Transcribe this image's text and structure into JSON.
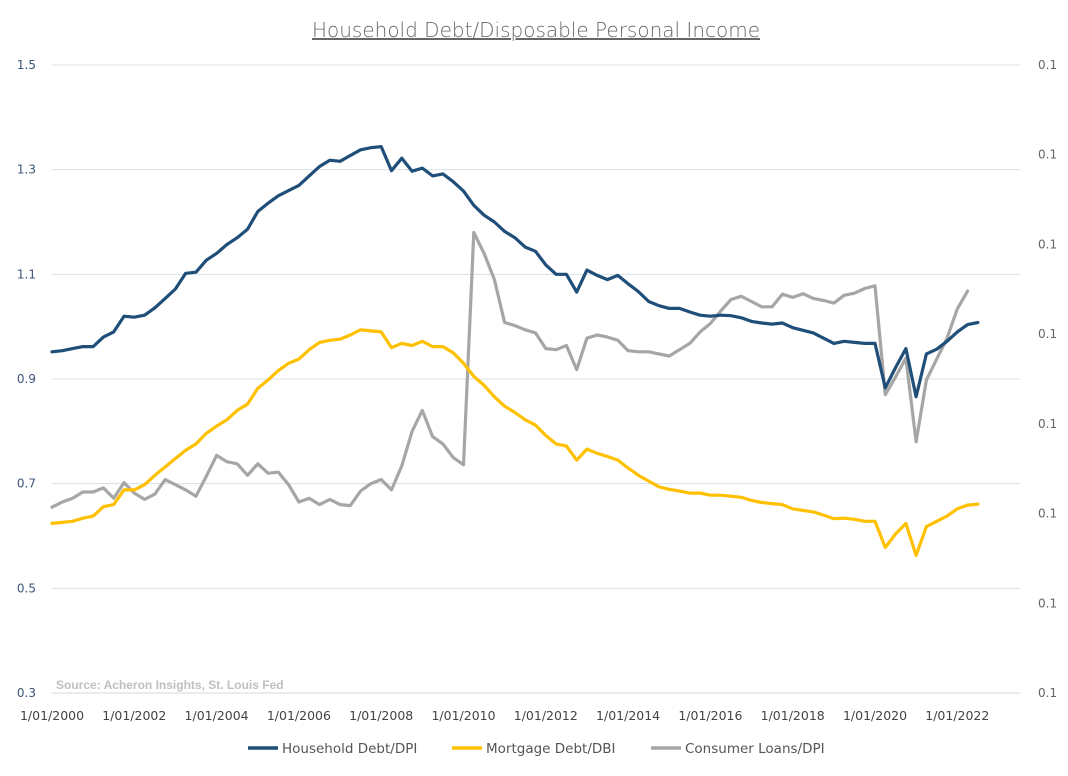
{
  "chart_data": {
    "type": "line",
    "title": "Household Debt/Disposable Personal Income",
    "source": "Source: Acheron Insights, St. Louis Fed",
    "y_left": {
      "min": 0.3,
      "max": 1.5,
      "ticks": [
        {
          "value": 0.3,
          "label": "0.3"
        },
        {
          "value": 0.5,
          "label": "0.5"
        },
        {
          "value": 0.7,
          "label": "0.7"
        },
        {
          "value": 0.9,
          "label": "0.9"
        },
        {
          "value": 1.1,
          "label": "1.1"
        },
        {
          "value": 1.3,
          "label": "1.3"
        },
        {
          "value": 1.5,
          "label": "1.5"
        }
      ]
    },
    "y_right": {
      "ticks": [
        "0.1",
        "0.1",
        "0.1",
        "0.1",
        "0.1",
        "0.1",
        "0.1",
        "0.1"
      ]
    },
    "x": {
      "start": 2000.0,
      "end": 2023.5,
      "ticks": [
        {
          "value": 2000,
          "label": "1/01/2000"
        },
        {
          "value": 2002,
          "label": "1/01/2002"
        },
        {
          "value": 2004,
          "label": "1/01/2004"
        },
        {
          "value": 2006,
          "label": "1/01/2006"
        },
        {
          "value": 2008,
          "label": "1/01/2008"
        },
        {
          "value": 2010,
          "label": "1/01/2010"
        },
        {
          "value": 2012,
          "label": "1/01/2012"
        },
        {
          "value": 2014,
          "label": "1/01/2014"
        },
        {
          "value": 2016,
          "label": "1/01/2016"
        },
        {
          "value": 2018,
          "label": "1/01/2018"
        },
        {
          "value": 2020,
          "label": "1/01/2020"
        },
        {
          "value": 2022,
          "label": "1/01/2022"
        }
      ]
    },
    "legend_position": "bottom",
    "grid": true,
    "series": [
      {
        "name": "Household Debt/DPI",
        "color": "#1f4e79",
        "axis": "left",
        "points": [
          [
            2000.0,
            0.952
          ],
          [
            2000.25,
            0.954
          ],
          [
            2000.5,
            0.958
          ],
          [
            2000.75,
            0.962
          ],
          [
            2001.0,
            0.962
          ],
          [
            2001.25,
            0.98
          ],
          [
            2001.5,
            0.99
          ],
          [
            2001.75,
            1.02
          ],
          [
            2002.0,
            1.018
          ],
          [
            2002.25,
            1.022
          ],
          [
            2002.5,
            1.036
          ],
          [
            2002.75,
            1.054
          ],
          [
            2003.0,
            1.072
          ],
          [
            2003.25,
            1.102
          ],
          [
            2003.5,
            1.104
          ],
          [
            2003.75,
            1.127
          ],
          [
            2004.0,
            1.14
          ],
          [
            2004.25,
            1.157
          ],
          [
            2004.5,
            1.17
          ],
          [
            2004.75,
            1.186
          ],
          [
            2005.0,
            1.22
          ],
          [
            2005.25,
            1.236
          ],
          [
            2005.5,
            1.25
          ],
          [
            2005.75,
            1.26
          ],
          [
            2006.0,
            1.27
          ],
          [
            2006.25,
            1.288
          ],
          [
            2006.5,
            1.306
          ],
          [
            2006.75,
            1.318
          ],
          [
            2007.0,
            1.316
          ],
          [
            2007.25,
            1.327
          ],
          [
            2007.5,
            1.338
          ],
          [
            2007.75,
            1.342
          ],
          [
            2008.0,
            1.344
          ],
          [
            2008.25,
            1.298
          ],
          [
            2008.5,
            1.322
          ],
          [
            2008.75,
            1.297
          ],
          [
            2009.0,
            1.303
          ],
          [
            2009.25,
            1.288
          ],
          [
            2009.5,
            1.292
          ],
          [
            2009.75,
            1.277
          ],
          [
            2010.0,
            1.259
          ],
          [
            2010.25,
            1.232
          ],
          [
            2010.5,
            1.213
          ],
          [
            2010.75,
            1.2
          ],
          [
            2011.0,
            1.182
          ],
          [
            2011.25,
            1.17
          ],
          [
            2011.5,
            1.152
          ],
          [
            2011.75,
            1.144
          ],
          [
            2012.0,
            1.118
          ],
          [
            2012.25,
            1.1
          ],
          [
            2012.5,
            1.1
          ],
          [
            2012.75,
            1.066
          ],
          [
            2013.0,
            1.108
          ],
          [
            2013.25,
            1.098
          ],
          [
            2013.5,
            1.09
          ],
          [
            2013.75,
            1.098
          ],
          [
            2014.0,
            1.082
          ],
          [
            2014.25,
            1.067
          ],
          [
            2014.5,
            1.048
          ],
          [
            2014.75,
            1.04
          ],
          [
            2015.0,
            1.035
          ],
          [
            2015.25,
            1.035
          ],
          [
            2015.5,
            1.028
          ],
          [
            2015.75,
            1.022
          ],
          [
            2016.0,
            1.02
          ],
          [
            2016.25,
            1.022
          ],
          [
            2016.5,
            1.021
          ],
          [
            2016.75,
            1.017
          ],
          [
            2017.0,
            1.01
          ],
          [
            2017.25,
            1.007
          ],
          [
            2017.5,
            1.005
          ],
          [
            2017.75,
            1.007
          ],
          [
            2018.0,
            0.998
          ],
          [
            2018.25,
            0.993
          ],
          [
            2018.5,
            0.988
          ],
          [
            2018.75,
            0.978
          ],
          [
            2019.0,
            0.968
          ],
          [
            2019.25,
            0.972
          ],
          [
            2019.5,
            0.97
          ],
          [
            2019.75,
            0.968
          ],
          [
            2020.0,
            0.968
          ],
          [
            2020.25,
            0.883
          ],
          [
            2020.5,
            0.922
          ],
          [
            2020.75,
            0.958
          ],
          [
            2021.0,
            0.866
          ],
          [
            2021.25,
            0.948
          ],
          [
            2021.5,
            0.957
          ],
          [
            2021.75,
            0.972
          ],
          [
            2022.0,
            0.99
          ],
          [
            2022.25,
            1.004
          ],
          [
            2022.5,
            1.008
          ]
        ]
      },
      {
        "name": "Mortgage Debt/DBI",
        "color": "#ffc000",
        "axis": "left",
        "points": [
          [
            2000.0,
            0.624
          ],
          [
            2000.25,
            0.626
          ],
          [
            2000.5,
            0.628
          ],
          [
            2000.75,
            0.634
          ],
          [
            2001.0,
            0.638
          ],
          [
            2001.25,
            0.656
          ],
          [
            2001.5,
            0.66
          ],
          [
            2001.75,
            0.688
          ],
          [
            2002.0,
            0.688
          ],
          [
            2002.25,
            0.698
          ],
          [
            2002.5,
            0.716
          ],
          [
            2002.75,
            0.732
          ],
          [
            2003.0,
            0.748
          ],
          [
            2003.25,
            0.764
          ],
          [
            2003.5,
            0.776
          ],
          [
            2003.75,
            0.796
          ],
          [
            2004.0,
            0.81
          ],
          [
            2004.25,
            0.822
          ],
          [
            2004.5,
            0.84
          ],
          [
            2004.75,
            0.852
          ],
          [
            2005.0,
            0.882
          ],
          [
            2005.25,
            0.898
          ],
          [
            2005.5,
            0.916
          ],
          [
            2005.75,
            0.93
          ],
          [
            2006.0,
            0.938
          ],
          [
            2006.25,
            0.956
          ],
          [
            2006.5,
            0.97
          ],
          [
            2006.75,
            0.974
          ],
          [
            2007.0,
            0.976
          ],
          [
            2007.25,
            0.984
          ],
          [
            2007.5,
            0.994
          ],
          [
            2007.75,
            0.992
          ],
          [
            2008.0,
            0.99
          ],
          [
            2008.25,
            0.96
          ],
          [
            2008.5,
            0.968
          ],
          [
            2008.75,
            0.964
          ],
          [
            2009.0,
            0.972
          ],
          [
            2009.25,
            0.962
          ],
          [
            2009.5,
            0.962
          ],
          [
            2009.75,
            0.95
          ],
          [
            2010.0,
            0.93
          ],
          [
            2010.25,
            0.905
          ],
          [
            2010.5,
            0.888
          ],
          [
            2010.75,
            0.866
          ],
          [
            2011.0,
            0.848
          ],
          [
            2011.25,
            0.836
          ],
          [
            2011.5,
            0.822
          ],
          [
            2011.75,
            0.812
          ],
          [
            2012.0,
            0.792
          ],
          [
            2012.25,
            0.776
          ],
          [
            2012.5,
            0.772
          ],
          [
            2012.75,
            0.745
          ],
          [
            2013.0,
            0.766
          ],
          [
            2013.25,
            0.758
          ],
          [
            2013.5,
            0.752
          ],
          [
            2013.75,
            0.745
          ],
          [
            2014.0,
            0.73
          ],
          [
            2014.25,
            0.716
          ],
          [
            2014.5,
            0.705
          ],
          [
            2014.75,
            0.694
          ],
          [
            2015.0,
            0.689
          ],
          [
            2015.25,
            0.686
          ],
          [
            2015.5,
            0.682
          ],
          [
            2015.75,
            0.682
          ],
          [
            2016.0,
            0.678
          ],
          [
            2016.25,
            0.678
          ],
          [
            2016.5,
            0.676
          ],
          [
            2016.75,
            0.674
          ],
          [
            2017.0,
            0.668
          ],
          [
            2017.25,
            0.664
          ],
          [
            2017.5,
            0.662
          ],
          [
            2017.75,
            0.66
          ],
          [
            2018.0,
            0.652
          ],
          [
            2018.25,
            0.649
          ],
          [
            2018.5,
            0.646
          ],
          [
            2018.75,
            0.64
          ],
          [
            2019.0,
            0.633
          ],
          [
            2019.25,
            0.634
          ],
          [
            2019.5,
            0.632
          ],
          [
            2019.75,
            0.628
          ],
          [
            2020.0,
            0.628
          ],
          [
            2020.25,
            0.578
          ],
          [
            2020.5,
            0.604
          ],
          [
            2020.75,
            0.624
          ],
          [
            2021.0,
            0.563
          ],
          [
            2021.25,
            0.618
          ],
          [
            2021.5,
            0.628
          ],
          [
            2021.75,
            0.638
          ],
          [
            2022.0,
            0.652
          ],
          [
            2022.25,
            0.659
          ],
          [
            2022.5,
            0.661
          ]
        ]
      },
      {
        "name": "Consumer Loans/DPI",
        "color": "#a6a6a6",
        "axis": "right",
        "points": [
          [
            2000.0,
            0.655
          ],
          [
            2000.25,
            0.665
          ],
          [
            2000.5,
            0.672
          ],
          [
            2000.75,
            0.684
          ],
          [
            2001.0,
            0.684
          ],
          [
            2001.25,
            0.692
          ],
          [
            2001.5,
            0.672
          ],
          [
            2001.75,
            0.702
          ],
          [
            2002.0,
            0.682
          ],
          [
            2002.25,
            0.67
          ],
          [
            2002.5,
            0.68
          ],
          [
            2002.75,
            0.708
          ],
          [
            2003.0,
            0.698
          ],
          [
            2003.25,
            0.688
          ],
          [
            2003.5,
            0.676
          ],
          [
            2003.75,
            0.714
          ],
          [
            2004.0,
            0.754
          ],
          [
            2004.25,
            0.742
          ],
          [
            2004.5,
            0.738
          ],
          [
            2004.75,
            0.716
          ],
          [
            2005.0,
            0.738
          ],
          [
            2005.25,
            0.72
          ],
          [
            2005.5,
            0.722
          ],
          [
            2005.75,
            0.698
          ],
          [
            2006.0,
            0.665
          ],
          [
            2006.25,
            0.672
          ],
          [
            2006.5,
            0.66
          ],
          [
            2006.75,
            0.67
          ],
          [
            2007.0,
            0.66
          ],
          [
            2007.25,
            0.658
          ],
          [
            2007.5,
            0.686
          ],
          [
            2007.75,
            0.7
          ],
          [
            2008.0,
            0.708
          ],
          [
            2008.25,
            0.688
          ],
          [
            2008.5,
            0.734
          ],
          [
            2008.75,
            0.8
          ],
          [
            2009.0,
            0.84
          ],
          [
            2009.25,
            0.79
          ],
          [
            2009.5,
            0.776
          ],
          [
            2009.75,
            0.75
          ],
          [
            2010.0,
            0.736
          ],
          [
            2010.25,
            1.18
          ],
          [
            2010.5,
            1.14
          ],
          [
            2010.75,
            1.09
          ],
          [
            2011.0,
            1.008
          ],
          [
            2011.25,
            1.002
          ],
          [
            2011.5,
            0.994
          ],
          [
            2011.75,
            0.988
          ],
          [
            2012.0,
            0.958
          ],
          [
            2012.25,
            0.956
          ],
          [
            2012.5,
            0.964
          ],
          [
            2012.75,
            0.918
          ],
          [
            2013.0,
            0.978
          ],
          [
            2013.25,
            0.984
          ],
          [
            2013.5,
            0.98
          ],
          [
            2013.75,
            0.974
          ],
          [
            2014.0,
            0.954
          ],
          [
            2014.25,
            0.952
          ],
          [
            2014.5,
            0.952
          ],
          [
            2014.75,
            0.948
          ],
          [
            2015.0,
            0.944
          ],
          [
            2015.25,
            0.956
          ],
          [
            2015.5,
            0.968
          ],
          [
            2015.75,
            0.99
          ],
          [
            2016.0,
            1.006
          ],
          [
            2016.25,
            1.03
          ],
          [
            2016.5,
            1.052
          ],
          [
            2016.75,
            1.058
          ],
          [
            2017.0,
            1.048
          ],
          [
            2017.25,
            1.038
          ],
          [
            2017.5,
            1.038
          ],
          [
            2017.75,
            1.062
          ],
          [
            2018.0,
            1.056
          ],
          [
            2018.25,
            1.063
          ],
          [
            2018.5,
            1.054
          ],
          [
            2018.75,
            1.05
          ],
          [
            2019.0,
            1.045
          ],
          [
            2019.25,
            1.06
          ],
          [
            2019.5,
            1.064
          ],
          [
            2019.75,
            1.073
          ],
          [
            2020.0,
            1.078
          ],
          [
            2020.25,
            0.87
          ],
          [
            2020.5,
            0.904
          ],
          [
            2020.75,
            0.94
          ],
          [
            2021.0,
            0.78
          ],
          [
            2021.25,
            0.898
          ],
          [
            2021.5,
            0.938
          ],
          [
            2021.75,
            0.978
          ],
          [
            2022.0,
            1.034
          ],
          [
            2022.25,
            1.068
          ]
        ]
      }
    ]
  }
}
